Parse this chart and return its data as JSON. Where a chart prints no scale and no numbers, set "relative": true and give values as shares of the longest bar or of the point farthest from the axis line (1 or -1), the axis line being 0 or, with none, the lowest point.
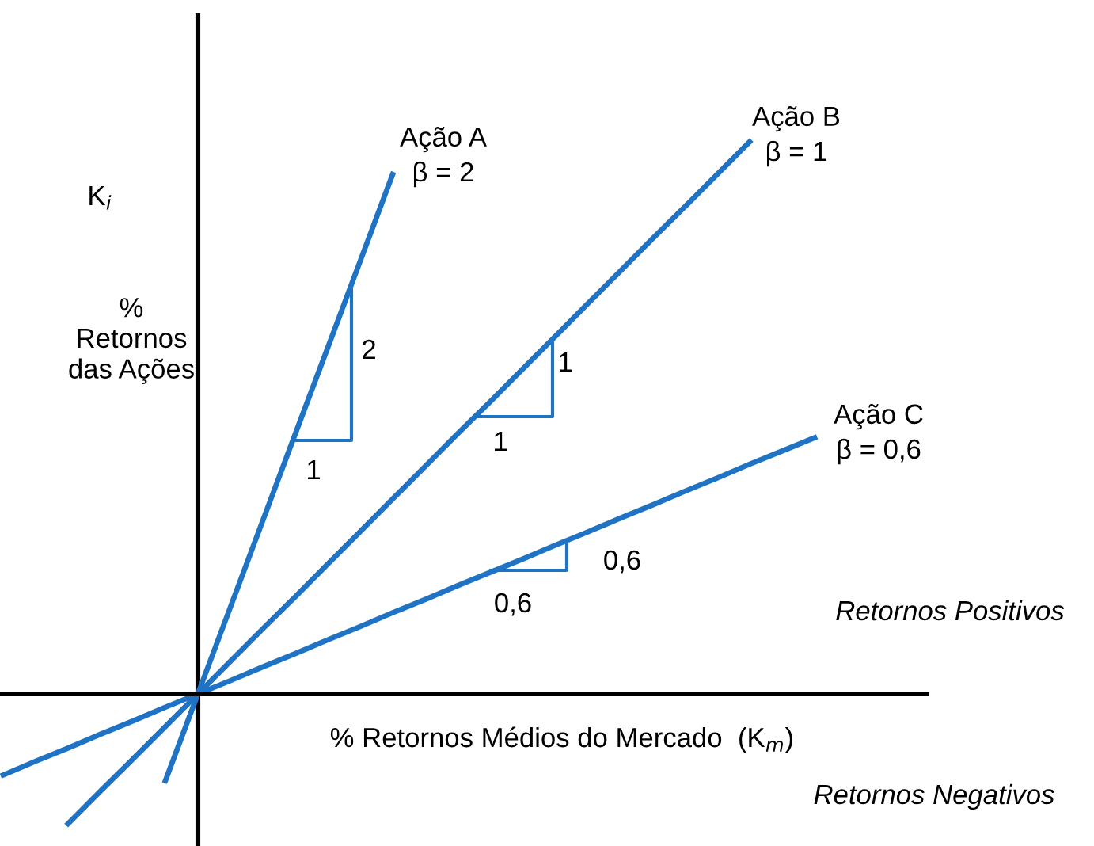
{
  "chart_data": {
    "type": "line",
    "relative": true,
    "xlabel": "% Retornos Médios do Mercado  (K$_{m}$)",
    "ylabel": "%\nRetornos\ndas Ações",
    "categories": [
      null,
      null,
      null,
      null,
      null,
      null,
      null,
      null,
      null,
      null,
      null,
      null,
      null,
      null,
      null,
      null,
      null,
      null,
      null,
      null,
      null,
      null,
      null,
      null,
      null,
      null
    ],
    "series": [
      {
        "name": "Ação A",
        "color": "#1f73c4",
        "values": [
          null,
          null,
          null,
          null,
          null,
          -0.157,
          0,
          0.157,
          0.314,
          0.471,
          0.627,
          0.784,
          0.941,
          null,
          null,
          null,
          null,
          null,
          null,
          null,
          null,
          null,
          null,
          null,
          null,
          null
        ]
      },
      {
        "name": "Ação B",
        "color": "#1f73c4",
        "values": [
          null,
          null,
          -0.235,
          -0.176,
          -0.118,
          -0.059,
          0,
          0.059,
          0.118,
          0.176,
          0.235,
          0.294,
          0.353,
          0.412,
          0.471,
          0.529,
          0.588,
          0.647,
          0.706,
          0.765,
          0.824,
          0.882,
          0.941,
          1,
          null,
          null
        ]
      },
      {
        "name": "Ação C",
        "color": "#1f73c4",
        "values": [
          -0.147,
          -0.122,
          -0.098,
          -0.073,
          -0.049,
          -0.024,
          0,
          0.024,
          0.049,
          0.073,
          0.098,
          0.122,
          0.147,
          0.171,
          0.196,
          0.22,
          0.244,
          0.269,
          0.293,
          0.318,
          0.342,
          0.367,
          0.391,
          0.416,
          0.44,
          0.464
        ]
      }
    ],
    "annotations": [
      "β = 2",
      "β = 1",
      "β = 0,6",
      "K$_{i}$",
      "2",
      "1",
      "1",
      "1",
      "0,6",
      "0,6",
      "Retornos Positivos",
      "Retornos Negativos"
    ],
    "marker": "none",
    "line_style": "solid",
    "legend": false
  }
}
